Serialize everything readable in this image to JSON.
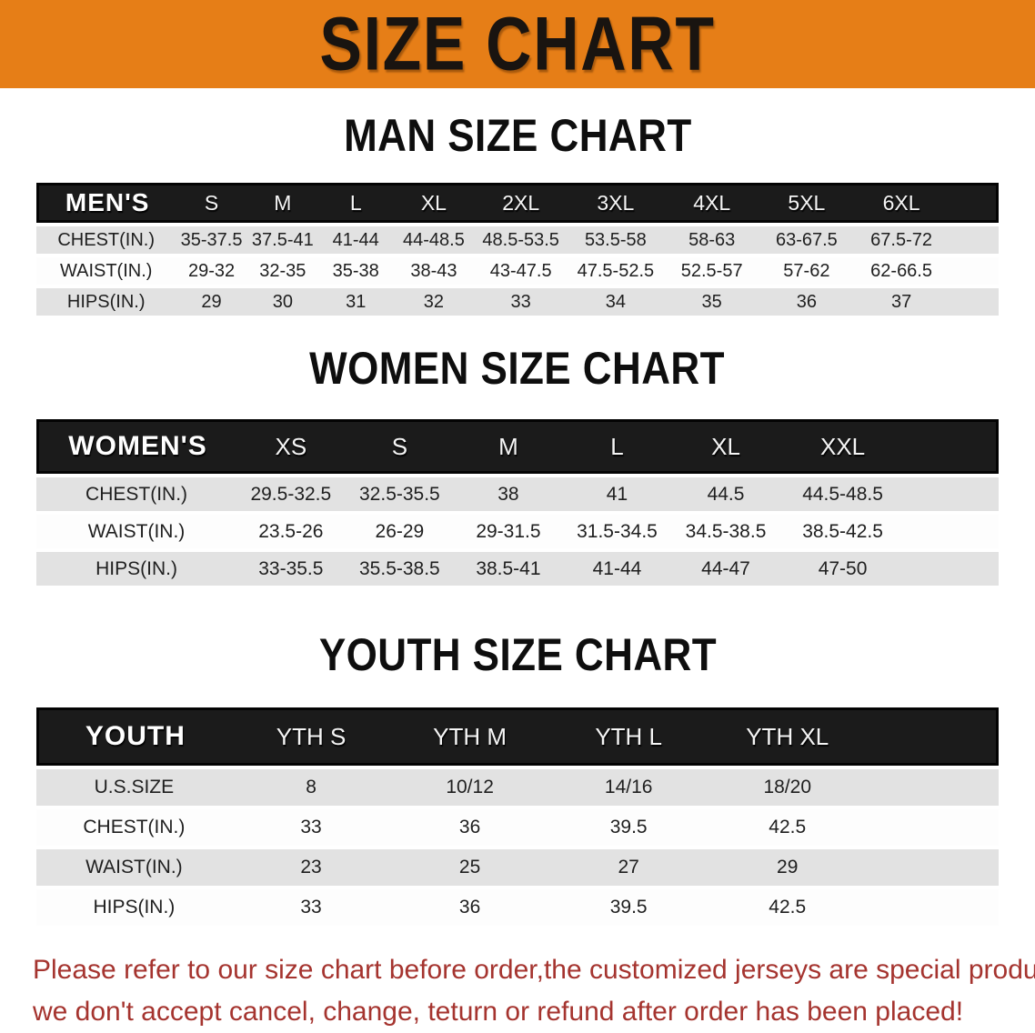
{
  "banner": {
    "title": "SIZE CHART"
  },
  "colors": {
    "banner_bg": "#E67E17",
    "table_header_bg": "#1b1b1b",
    "row_shaded_bg": "#E2E2E2",
    "footer_text": "#A5342F"
  },
  "sections": [
    {
      "id": "men",
      "heading": "MAN SIZE CHART",
      "table": {
        "columns": [
          "MEN'S",
          "S",
          "M",
          "L",
          "XL",
          "2XL",
          "3XL",
          "4XL",
          "5XL",
          "6XL"
        ],
        "rows": [
          {
            "label": "CHEST(IN.)",
            "values": [
              "35-37.5",
              "37.5-41",
              "41-44",
              "44-48.5",
              "48.5-53.5",
              "53.5-58",
              "58-63",
              "63-67.5",
              "67.5-72"
            ]
          },
          {
            "label": "WAIST(IN.)",
            "values": [
              "29-32",
              "32-35",
              "35-38",
              "38-43",
              "43-47.5",
              "47.5-52.5",
              "52.5-57",
              "57-62",
              "62-66.5"
            ]
          },
          {
            "label": "HIPS(IN.)",
            "values": [
              "29",
              "30",
              "31",
              "32",
              "33",
              "34",
              "35",
              "36",
              "37"
            ]
          }
        ]
      }
    },
    {
      "id": "women",
      "heading": "WOMEN SIZE CHART",
      "table": {
        "columns": [
          "WOMEN'S",
          "XS",
          "S",
          "M",
          "L",
          "XL",
          "XXL"
        ],
        "rows": [
          {
            "label": "CHEST(IN.)",
            "values": [
              "29.5-32.5",
              "32.5-35.5",
              "38",
              "41",
              "44.5",
              "44.5-48.5"
            ]
          },
          {
            "label": "WAIST(IN.)",
            "values": [
              "23.5-26",
              "26-29",
              "29-31.5",
              "31.5-34.5",
              "34.5-38.5",
              "38.5-42.5"
            ]
          },
          {
            "label": "HIPS(IN.)",
            "values": [
              "33-35.5",
              "35.5-38.5",
              "38.5-41",
              "41-44",
              "44-47",
              "47-50"
            ]
          }
        ]
      }
    },
    {
      "id": "youth",
      "heading": "YOUTH SIZE CHART",
      "table": {
        "columns": [
          "YOUTH",
          "YTH S",
          "YTH M",
          "YTH L",
          "YTH XL"
        ],
        "rows": [
          {
            "label": "U.S.SIZE",
            "values": [
              "8",
              "10/12",
              "14/16",
              "18/20"
            ]
          },
          {
            "label": "CHEST(IN.)",
            "values": [
              "33",
              "36",
              "39.5",
              "42.5"
            ]
          },
          {
            "label": "WAIST(IN.)",
            "values": [
              "23",
              "25",
              "27",
              "29"
            ]
          },
          {
            "label": "HIPS(IN.)",
            "values": [
              "33",
              "36",
              "39.5",
              "42.5"
            ]
          }
        ]
      }
    }
  ],
  "footer": {
    "lines": [
      "Please refer to our size chart before order,the customized jerseys are special products,",
      "we don't accept cancel, change, teturn or refund after order has been placed!"
    ]
  }
}
